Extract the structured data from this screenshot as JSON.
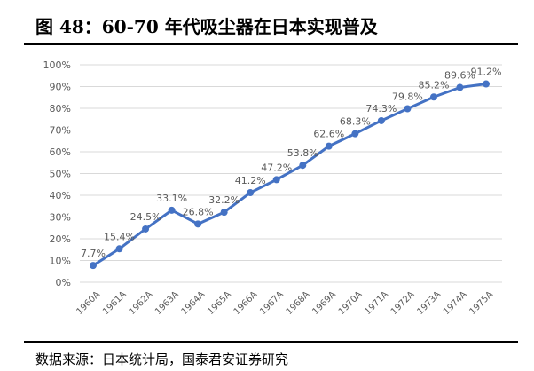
{
  "title": "图 48：60-70 年代吸尘器在日本实现普及",
  "source": "数据来源：日本统计局，国泰君安证券研究",
  "chart_data": {
    "type": "line",
    "categories": [
      "1960A",
      "1961A",
      "1962A",
      "1963A",
      "1964A",
      "1965A",
      "1966A",
      "1967A",
      "1968A",
      "1969A",
      "1970A",
      "1971A",
      "1972A",
      "1973A",
      "1974A",
      "1975A"
    ],
    "series": [
      {
        "values": [
          7.7,
          15.4,
          24.5,
          33.1,
          26.8,
          32.2,
          41.2,
          47.2,
          53.8,
          62.6,
          68.3,
          74.3,
          79.8,
          85.2,
          89.6,
          91.2
        ],
        "color": "#4472C4"
      }
    ],
    "data_labels": [
      "7.7%",
      "15.4%",
      "24.5%",
      "33.1%",
      "26.8%",
      "32.2%",
      "41.2%",
      "47.2%",
      "53.8%",
      "62.6%",
      "68.3%",
      "74.3%",
      "79.8%",
      "85.2%",
      "89.6%",
      "91.2%"
    ],
    "y_ticks": [
      "0%",
      "10%",
      "20%",
      "30%",
      "40%",
      "50%",
      "60%",
      "70%",
      "80%",
      "90%",
      "100%"
    ],
    "ylim": [
      0,
      100
    ],
    "grid": true,
    "legend": "none"
  }
}
